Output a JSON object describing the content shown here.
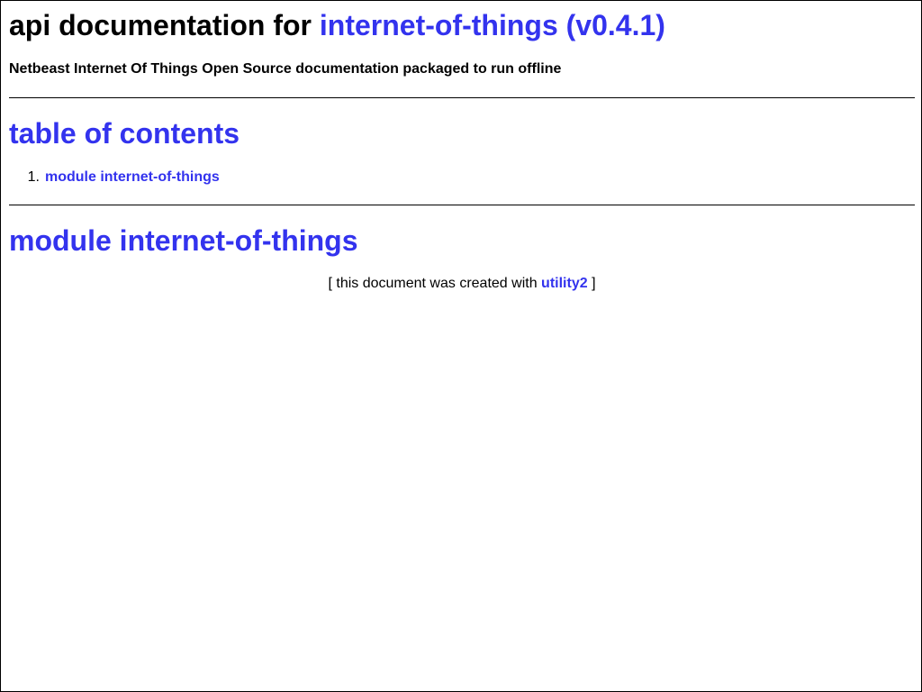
{
  "header": {
    "title_prefix": "api documentation for",
    "title_link": "internet-of-things (v0.4.1)",
    "subtitle": "Netbeast Internet Of Things Open Source documentation packaged to run offline"
  },
  "toc": {
    "heading": "table of contents",
    "items": [
      {
        "number": "1.",
        "label": "module internet-of-things"
      }
    ]
  },
  "module": {
    "heading": "module internet-of-things"
  },
  "footer": {
    "prefix": "[ this document was created with",
    "link": "utility2",
    "suffix": "]"
  },
  "colors": {
    "link": "#3333ee",
    "text": "#000000",
    "background": "#ffffff"
  }
}
